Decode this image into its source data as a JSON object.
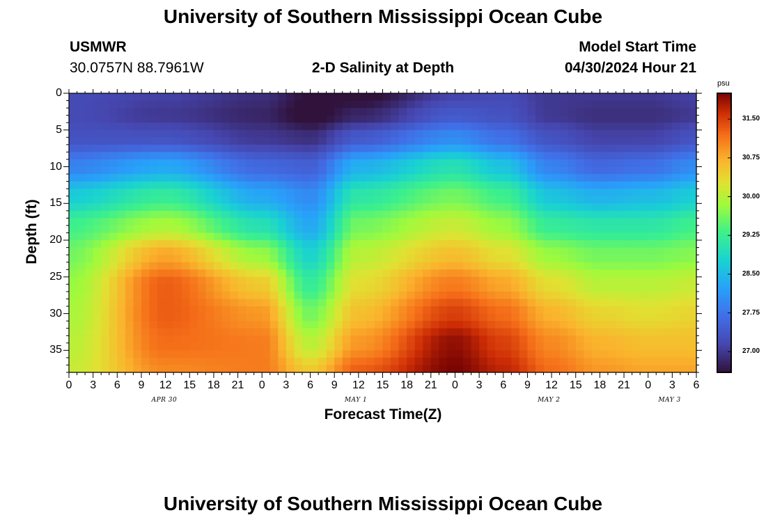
{
  "header": {
    "title": "University of Southern Mississippi Ocean Cube",
    "station": "USMWR",
    "coords": "30.0757N  88.7961W",
    "plot_title": "2-D Salinity at Depth",
    "model_label": "Model Start Time",
    "model_time": "04/30/2024 Hour 21"
  },
  "footer": {
    "title": "University of Southern Mississippi Ocean Cube"
  },
  "chart_data": {
    "type": "heatmap",
    "title": "2-D Salinity at Depth",
    "xlabel": "Forecast Time(Z)",
    "ylabel": "Depth (ft)",
    "x_range_hours": [
      0,
      78
    ],
    "ylim": [
      0,
      38
    ],
    "y_ticks": [
      0,
      5,
      10,
      15,
      20,
      25,
      30,
      35
    ],
    "x_tick_labels": [
      "0",
      "3",
      "6",
      "9",
      "12",
      "15",
      "18",
      "21",
      "0",
      "3",
      "6",
      "9",
      "12",
      "15",
      "18",
      "21",
      "0",
      "3",
      "6",
      "9",
      "12",
      "15",
      "18",
      "21",
      "0",
      "3",
      "6"
    ],
    "day_labels": [
      {
        "label": "APR 30",
        "hour": 12
      },
      {
        "label": "MAY 1",
        "hour": 36
      },
      {
        "label": "MAY 2",
        "hour": 60
      },
      {
        "label": "MAY 3",
        "hour": 75
      }
    ],
    "colorbar": {
      "unit": "psu",
      "min": 26.6,
      "max": 32.0,
      "ticks": [
        "27.00",
        "27.75",
        "28.50",
        "29.25",
        "30.00",
        "30.75",
        "31.50"
      ]
    },
    "profile_hours": [
      0,
      12,
      24,
      30,
      36,
      48,
      54,
      60,
      66,
      72,
      78
    ],
    "profile_depths_ft": [
      0,
      3,
      6,
      10,
      14,
      18,
      22,
      26,
      30,
      34,
      38
    ],
    "salinity_psu": [
      [
        27.2,
        27.2,
        27.3,
        27.9,
        28.7,
        29.3,
        29.6,
        29.8,
        29.9,
        30.0,
        30.1
      ],
      [
        27.1,
        27.0,
        27.3,
        28.3,
        29.2,
        29.9,
        30.8,
        31.3,
        31.3,
        31.2,
        31.0
      ],
      [
        26.9,
        26.8,
        27.0,
        27.6,
        28.3,
        29.0,
        29.8,
        30.5,
        30.9,
        31.1,
        31.1
      ],
      [
        26.6,
        26.5,
        26.9,
        27.5,
        28.0,
        28.3,
        28.8,
        29.2,
        29.6,
        30.0,
        30.5
      ],
      [
        26.5,
        26.8,
        27.4,
        28.4,
        29.1,
        29.6,
        30.0,
        30.3,
        30.6,
        30.9,
        31.3
      ],
      [
        27.1,
        27.4,
        28.0,
        29.0,
        29.6,
        30.1,
        30.6,
        31.1,
        31.5,
        31.9,
        32.0
      ],
      [
        27.2,
        27.3,
        27.7,
        28.6,
        29.3,
        29.8,
        30.3,
        30.8,
        31.2,
        31.5,
        31.7
      ],
      [
        27.0,
        27.0,
        27.3,
        27.9,
        28.6,
        29.2,
        29.8,
        30.3,
        30.7,
        31.0,
        31.2
      ],
      [
        27.0,
        26.9,
        27.1,
        27.6,
        28.4,
        29.1,
        29.6,
        30.0,
        30.4,
        30.7,
        30.9
      ],
      [
        27.0,
        26.9,
        27.1,
        27.7,
        28.5,
        29.1,
        29.6,
        30.0,
        30.3,
        30.6,
        30.8
      ],
      [
        27.1,
        27.0,
        27.3,
        28.0,
        28.7,
        29.3,
        29.7,
        30.1,
        30.4,
        30.6,
        30.8
      ]
    ]
  }
}
